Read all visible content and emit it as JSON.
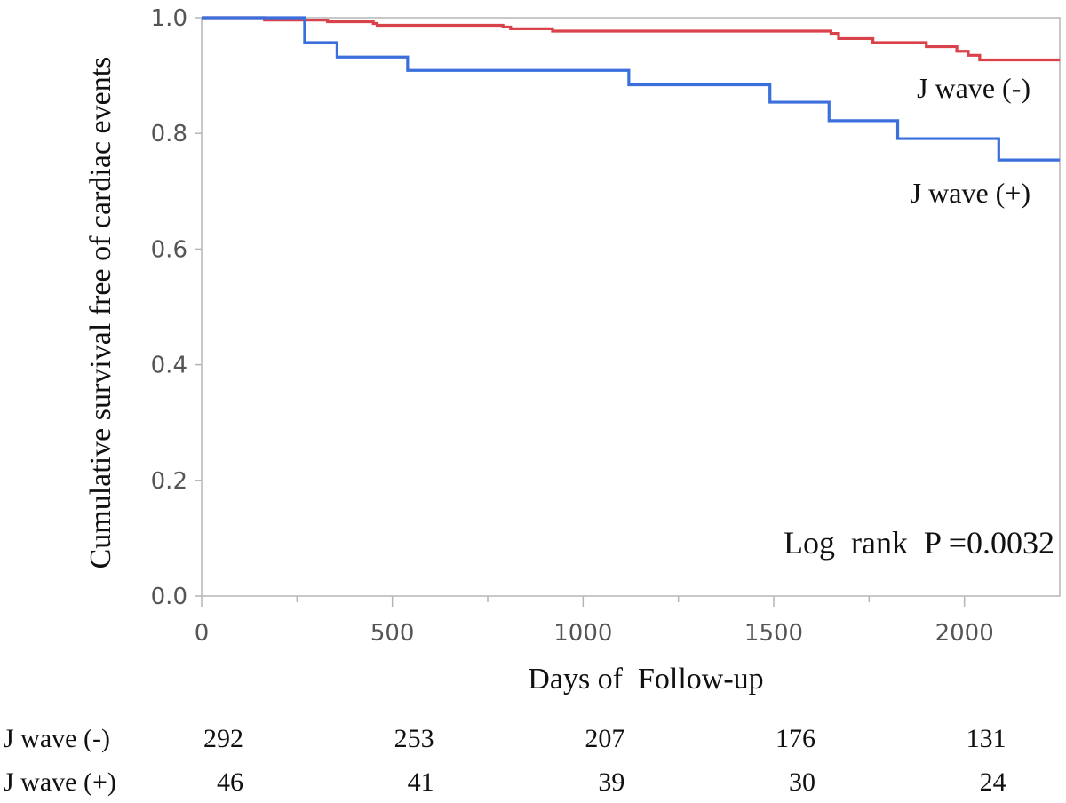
{
  "chart_data": {
    "type": "line",
    "subtype": "kaplan-meier-step",
    "xlabel": "Days of  Follow-up",
    "ylabel": "Cumulative survival free of  cardiac events",
    "xlim": [
      0,
      2250
    ],
    "ylim": [
      0,
      1.0
    ],
    "xticks": [
      0,
      500,
      1000,
      1500,
      2000
    ],
    "xtick_labels": [
      "0",
      "500",
      "1000",
      "1500",
      "2000"
    ],
    "yticks": [
      0.0,
      0.2,
      0.4,
      0.6,
      0.8,
      1.0
    ],
    "ytick_labels": [
      "0.0",
      "0.2",
      "0.4",
      "0.6",
      "0.8",
      "1.0"
    ],
    "series": [
      {
        "name": "J wave (-)",
        "label": "J wave (-)",
        "color": "#d9414b",
        "steps": [
          [
            0,
            1.0
          ],
          [
            165,
            0.996
          ],
          [
            330,
            0.993
          ],
          [
            450,
            0.99
          ],
          [
            460,
            0.987
          ],
          [
            790,
            0.984
          ],
          [
            810,
            0.981
          ],
          [
            920,
            0.977
          ],
          [
            1650,
            0.973
          ],
          [
            1670,
            0.964
          ],
          [
            1760,
            0.957
          ],
          [
            1900,
            0.95
          ],
          [
            1980,
            0.942
          ],
          [
            2010,
            0.935
          ],
          [
            2040,
            0.927
          ],
          [
            2250,
            0.927
          ]
        ]
      },
      {
        "name": "J wave (+)",
        "label": "J wave (+)",
        "color": "#3a6fdc",
        "steps": [
          [
            0,
            1.0
          ],
          [
            270,
            0.957
          ],
          [
            355,
            0.932
          ],
          [
            540,
            0.909
          ],
          [
            1120,
            0.884
          ],
          [
            1490,
            0.854
          ],
          [
            1645,
            0.822
          ],
          [
            1825,
            0.791
          ],
          [
            2090,
            0.754
          ],
          [
            2250,
            0.754
          ]
        ]
      }
    ],
    "annotation": "Log  rank  P =0.0032",
    "risk_table": {
      "rows": [
        {
          "label": "J wave (-)",
          "values": [
            "292",
            "253",
            "207",
            "176",
            "131"
          ]
        },
        {
          "label": "J wave (+)",
          "values": [
            "46",
            "41",
            "39",
            "30",
            "24"
          ]
        }
      ]
    }
  }
}
